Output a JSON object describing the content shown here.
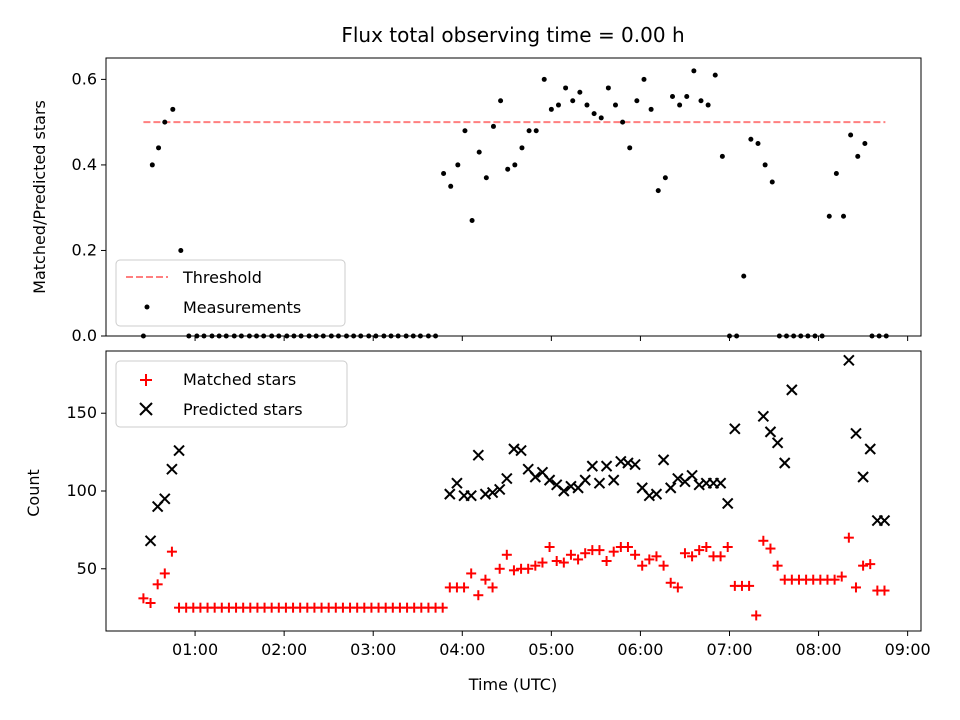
{
  "chart_data": {
    "title": "Flux total observing time = 0.00 h",
    "xlabel": "Time (UTC)",
    "x_unit": "hours (UTC)",
    "xlim": [
      0.0,
      9.15
    ],
    "x_ticks": [
      {
        "value": 1,
        "label": "01:00"
      },
      {
        "value": 2,
        "label": "02:00"
      },
      {
        "value": 3,
        "label": "03:00"
      },
      {
        "value": 4,
        "label": "04:00"
      },
      {
        "value": 5,
        "label": "05:00"
      },
      {
        "value": 6,
        "label": "06:00"
      },
      {
        "value": 7,
        "label": "07:00"
      },
      {
        "value": 8,
        "label": "08:00"
      },
      {
        "value": 9,
        "label": "09:00"
      }
    ],
    "colors": {
      "threshold": "#ff7f7f",
      "measurements": "#000000",
      "matched": "#ff0000",
      "predicted": "#000000"
    },
    "panels": [
      {
        "type": "scatter",
        "ylabel": "Matched/Predicted stars",
        "ylim": [
          0,
          0.65
        ],
        "y_ticks": [
          0.0,
          0.2,
          0.4,
          0.6
        ],
        "y_tick_labels": [
          "0.0",
          "0.2",
          "0.4",
          "0.6"
        ],
        "legend_position": "lower-left",
        "series": [
          {
            "name": "Threshold",
            "kind": "dashed-line",
            "x": [
              0.42,
              8.75
            ],
            "y": [
              0.5,
              0.5
            ]
          },
          {
            "name": "Measurements",
            "kind": "dot",
            "x": [
              0.42,
              0.52,
              0.59,
              0.66,
              0.75,
              0.84,
              0.93,
              1.02,
              1.1,
              1.19,
              1.27,
              1.35,
              1.44,
              1.52,
              1.61,
              1.69,
              1.77,
              1.86,
              1.94,
              2.03,
              2.11,
              2.19,
              2.28,
              2.36,
              2.44,
              2.53,
              2.61,
              2.7,
              2.78,
              2.86,
              2.95,
              3.03,
              3.12,
              3.2,
              3.28,
              3.37,
              3.45,
              3.53,
              3.62,
              3.7,
              3.79,
              3.87,
              3.95,
              4.03,
              4.11,
              4.19,
              4.27,
              4.35,
              4.43,
              4.51,
              4.59,
              4.67,
              4.75,
              4.83,
              4.92,
              5.0,
              5.08,
              5.16,
              5.24,
              5.32,
              5.4,
              5.48,
              5.56,
              5.64,
              5.72,
              5.8,
              5.88,
              5.96,
              6.04,
              6.12,
              6.2,
              6.28,
              6.36,
              6.44,
              6.52,
              6.6,
              6.68,
              6.76,
              6.84,
              6.92,
              7.0,
              7.08,
              7.16,
              7.24,
              7.32,
              7.4,
              7.48,
              7.56,
              7.64,
              7.72,
              7.8,
              7.88,
              7.96,
              8.04,
              8.12,
              8.2,
              8.28,
              8.36,
              8.44,
              8.52,
              8.6,
              8.68,
              8.76
            ],
            "y": [
              0.0,
              0.4,
              0.44,
              0.5,
              0.53,
              0.2,
              0.0,
              0.0,
              0.0,
              0.0,
              0.0,
              0.0,
              0.0,
              0.0,
              0.0,
              0.0,
              0.0,
              0.0,
              0.0,
              0.0,
              0.0,
              0.0,
              0.0,
              0.0,
              0.0,
              0.0,
              0.0,
              0.0,
              0.0,
              0.0,
              0.0,
              0.0,
              0.0,
              0.0,
              0.0,
              0.0,
              0.0,
              0.0,
              0.0,
              0.0,
              0.38,
              0.35,
              0.4,
              0.48,
              0.27,
              0.43,
              0.37,
              0.49,
              0.55,
              0.39,
              0.4,
              0.44,
              0.48,
              0.48,
              0.6,
              0.53,
              0.54,
              0.58,
              0.55,
              0.57,
              0.54,
              0.52,
              0.51,
              0.58,
              0.54,
              0.5,
              0.44,
              0.55,
              0.6,
              0.53,
              0.34,
              0.37,
              0.56,
              0.54,
              0.56,
              0.62,
              0.55,
              0.54,
              0.61,
              0.42,
              0.0,
              0.0,
              0.14,
              0.46,
              0.45,
              0.4,
              0.36,
              0.0,
              0.0,
              0.0,
              0.0,
              0.0,
              0.0,
              0.0,
              0.28,
              0.38,
              0.28,
              0.47,
              0.42,
              0.45,
              0.0,
              0.0,
              0.0
            ]
          }
        ]
      },
      {
        "type": "scatter",
        "ylabel": "Count",
        "ylim": [
          10,
          190
        ],
        "y_ticks": [
          50,
          100,
          150
        ],
        "y_tick_labels": [
          "50",
          "100",
          "150"
        ],
        "legend_position": "upper-left",
        "series": [
          {
            "name": "Matched stars",
            "kind": "plus",
            "x": [
              0.42,
              0.5,
              0.58,
              0.66,
              0.74,
              0.82,
              0.9,
              0.98,
              1.06,
              1.14,
              1.22,
              1.3,
              1.38,
              1.46,
              1.54,
              1.62,
              1.7,
              1.78,
              1.86,
              1.94,
              2.02,
              2.1,
              2.18,
              2.26,
              2.34,
              2.42,
              2.5,
              2.58,
              2.66,
              2.74,
              2.82,
              2.9,
              2.98,
              3.06,
              3.14,
              3.22,
              3.3,
              3.38,
              3.46,
              3.54,
              3.62,
              3.7,
              3.78,
              3.86,
              3.94,
              4.02,
              4.1,
              4.18,
              4.26,
              4.34,
              4.42,
              4.5,
              4.58,
              4.66,
              4.74,
              4.82,
              4.9,
              4.98,
              5.06,
              5.14,
              5.22,
              5.3,
              5.38,
              5.46,
              5.54,
              5.62,
              5.7,
              5.78,
              5.86,
              5.94,
              6.02,
              6.1,
              6.18,
              6.26,
              6.34,
              6.42,
              6.5,
              6.58,
              6.66,
              6.74,
              6.82,
              6.9,
              6.98,
              7.06,
              7.14,
              7.22,
              7.3,
              7.38,
              7.46,
              7.54,
              7.62,
              7.7,
              7.78,
              7.86,
              7.94,
              8.02,
              8.1,
              8.18,
              8.26,
              8.34,
              8.42,
              8.5,
              8.58,
              8.66,
              8.74
            ],
            "y": [
              31,
              28,
              40,
              47,
              61,
              25,
              25,
              25,
              25,
              25,
              25,
              25,
              25,
              25,
              25,
              25,
              25,
              25,
              25,
              25,
              25,
              25,
              25,
              25,
              25,
              25,
              25,
              25,
              25,
              25,
              25,
              25,
              25,
              25,
              25,
              25,
              25,
              25,
              25,
              25,
              25,
              25,
              25,
              38,
              38,
              38,
              47,
              33,
              43,
              38,
              50,
              59,
              49,
              50,
              50,
              52,
              54,
              64,
              55,
              54,
              59,
              56,
              60,
              62,
              62,
              55,
              61,
              64,
              64,
              59,
              52,
              56,
              58,
              52,
              41,
              38,
              60,
              58,
              62,
              64,
              58,
              58,
              64,
              39,
              39,
              39,
              20,
              68,
              63,
              52,
              43,
              43,
              43,
              43,
              43,
              43,
              43,
              43,
              45,
              70,
              38,
              52,
              53,
              36,
              36
            ]
          },
          {
            "name": "Predicted stars",
            "kind": "cross",
            "x": [
              0.5,
              0.58,
              0.66,
              0.74,
              0.82,
              3.86,
              3.94,
              4.02,
              4.1,
              4.18,
              4.26,
              4.34,
              4.42,
              4.5,
              4.58,
              4.66,
              4.74,
              4.82,
              4.9,
              4.98,
              5.06,
              5.14,
              5.22,
              5.3,
              5.38,
              5.46,
              5.54,
              5.62,
              5.7,
              5.78,
              5.86,
              5.94,
              6.02,
              6.1,
              6.18,
              6.26,
              6.34,
              6.42,
              6.5,
              6.58,
              6.66,
              6.74,
              6.82,
              6.9,
              6.98,
              7.06,
              7.38,
              7.46,
              7.54,
              7.62,
              7.7,
              8.34,
              8.42,
              8.5,
              8.58,
              8.66,
              8.74
            ],
            "y": [
              68,
              90,
              95,
              114,
              126,
              98,
              105,
              97,
              97,
              123,
              98,
              99,
              101,
              108,
              127,
              126,
              114,
              109,
              112,
              107,
              104,
              100,
              103,
              102,
              107,
              116,
              105,
              116,
              107,
              119,
              118,
              117,
              102,
              97,
              98,
              120,
              102,
              108,
              106,
              110,
              104,
              105,
              105,
              105,
              92,
              140,
              148,
              138,
              131,
              118,
              165,
              184,
              137,
              109,
              127,
              81,
              81
            ]
          }
        ]
      }
    ]
  }
}
